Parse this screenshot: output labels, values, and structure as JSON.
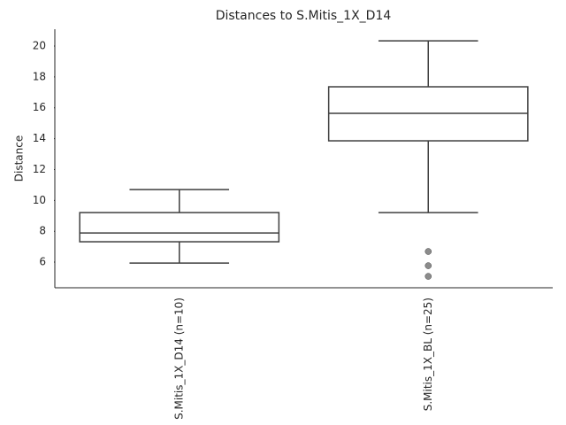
{
  "chart_data": {
    "type": "box",
    "title": "Distances to S.Mitis_1X_D14",
    "ylabel": "Distance",
    "categories": [
      "S.Mitis_1X_D14 (n=10)",
      "S.Mitis_1X_BL (n=25)"
    ],
    "boxes": [
      {
        "whislo": 5.94,
        "q1": 7.32,
        "med": 7.89,
        "q3": 9.21,
        "whishi": 10.7,
        "fliers": []
      },
      {
        "whislo": 9.21,
        "q1": 13.86,
        "med": 15.64,
        "q3": 17.36,
        "whishi": 20.34,
        "fliers": [
          6.69,
          5.77,
          5.08
        ]
      }
    ],
    "ylim": [
      4.34,
      21.09
    ],
    "yticks": [
      6,
      8,
      10,
      12,
      14,
      16,
      18,
      20
    ],
    "line_color": "#3f3f3f",
    "box_fill": "#ffffff",
    "flier_color": "#8c8c8c"
  }
}
